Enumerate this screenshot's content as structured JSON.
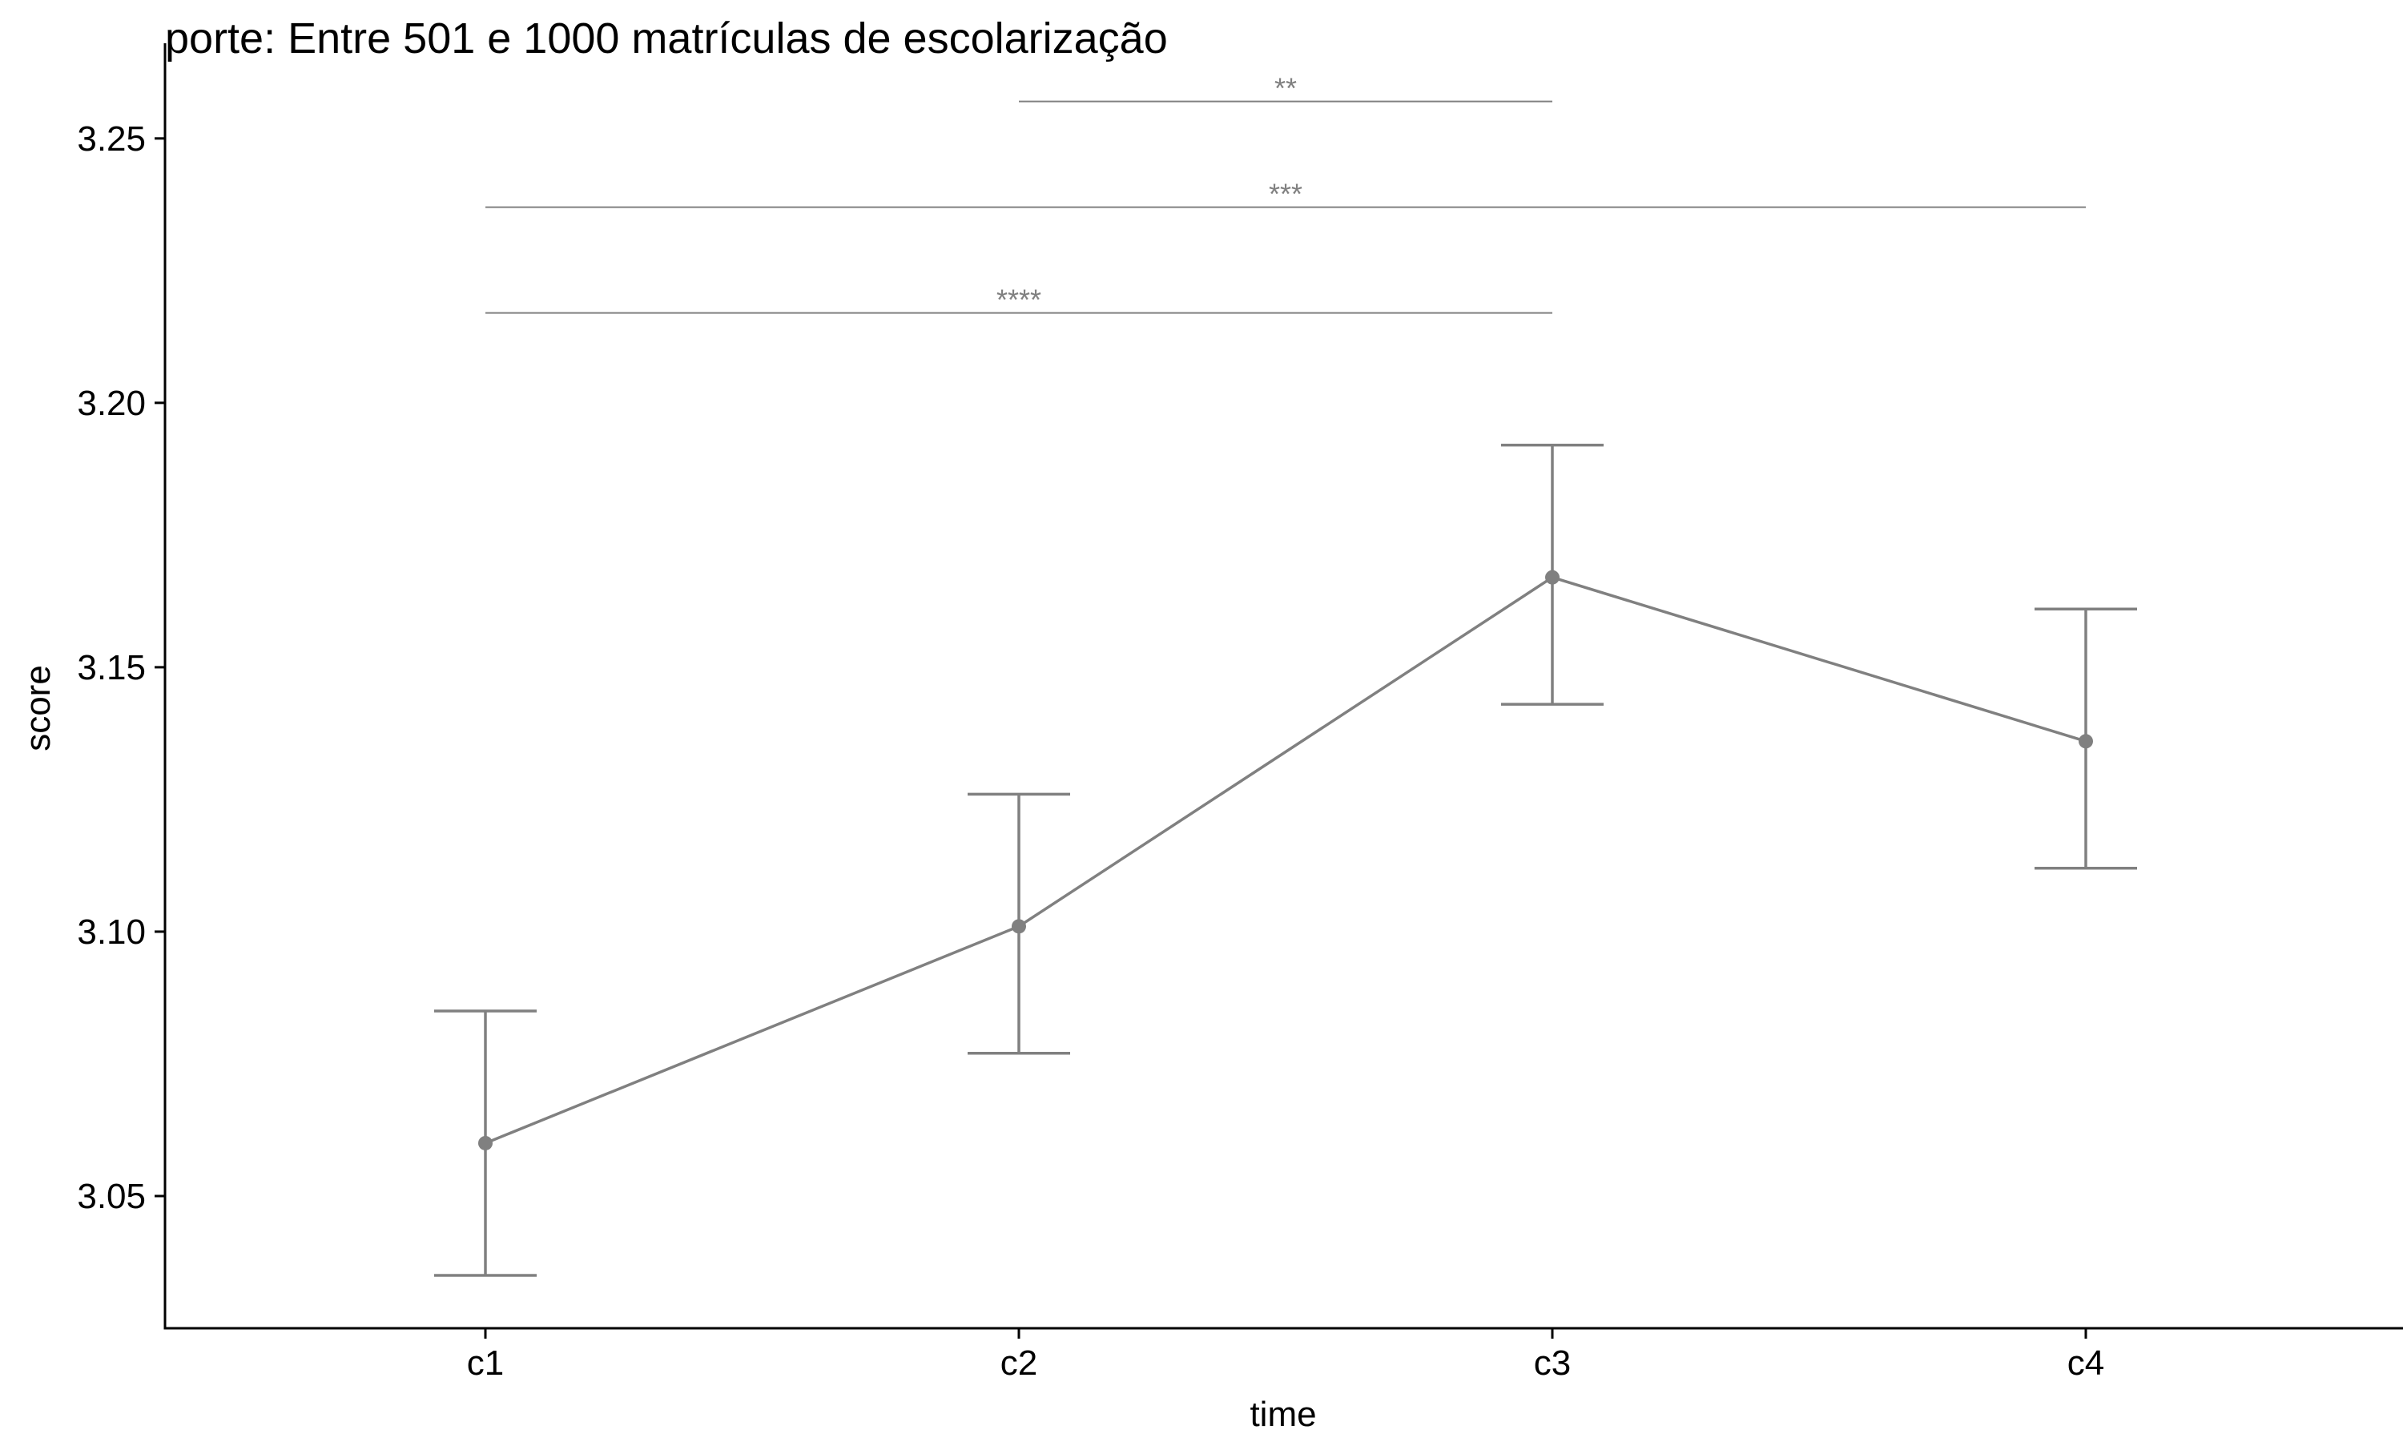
{
  "chart_data": {
    "type": "line",
    "title": "porte: Entre 501 e 1000 matrículas de escolarização",
    "xlabel": "time",
    "ylabel": "score",
    "categories": [
      "c1",
      "c2",
      "c3",
      "c4"
    ],
    "series": [
      {
        "values": [
          3.06,
          3.101,
          3.167,
          3.136
        ],
        "lower": [
          3.035,
          3.077,
          3.143,
          3.112
        ],
        "upper": [
          3.085,
          3.126,
          3.192,
          3.161
        ],
        "color": "#808080"
      }
    ],
    "y_ticks": [
      3.05,
      3.1,
      3.15,
      3.2,
      3.25
    ],
    "y_tick_labels": [
      "3.05",
      "3.10",
      "3.15",
      "3.20",
      "3.25"
    ],
    "ylim": [
      3.025,
      3.268
    ],
    "grid": false,
    "significance": [
      {
        "from": "c2",
        "to": "c3",
        "y": 3.257,
        "label": "**"
      },
      {
        "from": "c1",
        "to": "c4",
        "y": 3.237,
        "label": "***"
      },
      {
        "from": "c1",
        "to": "c3",
        "y": 3.217,
        "label": "****"
      }
    ]
  }
}
